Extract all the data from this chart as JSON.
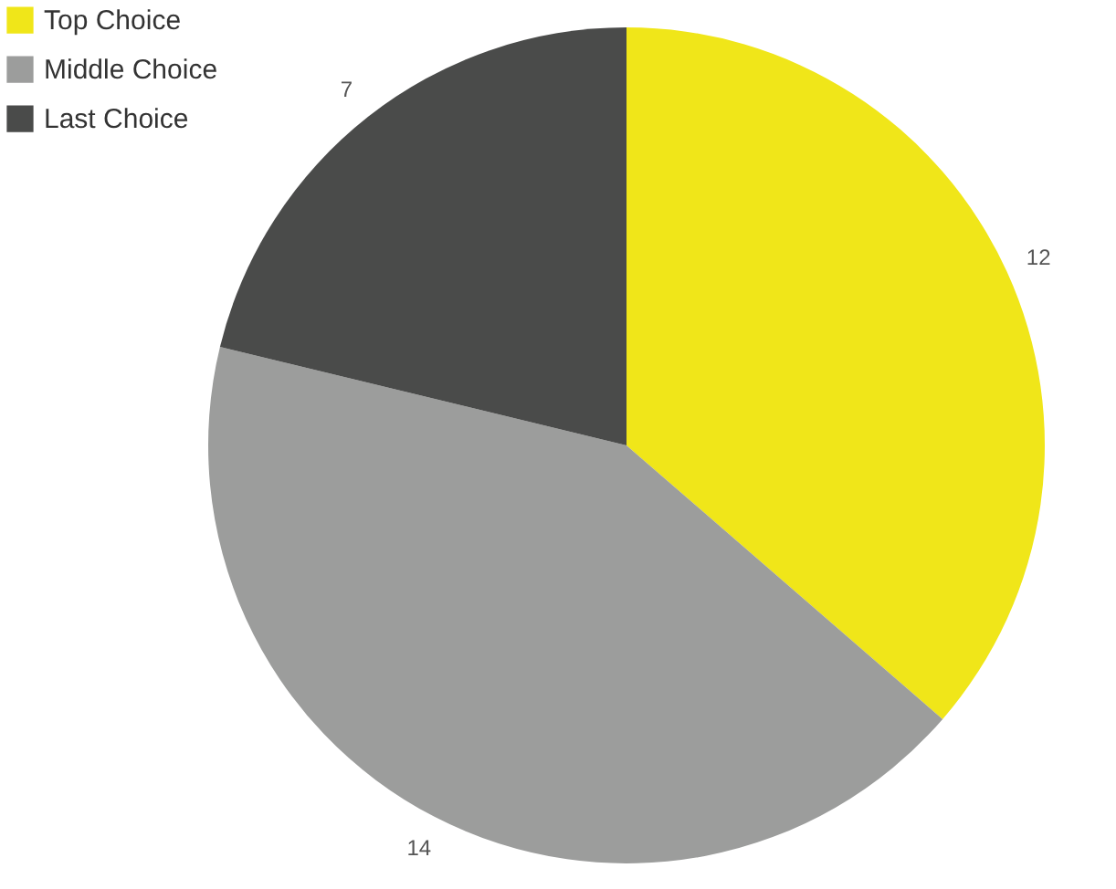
{
  "chart_data": {
    "type": "pie",
    "categories": [
      "Top Choice",
      "Middle Choice",
      "Last Choice"
    ],
    "values": [
      12,
      14,
      7
    ],
    "colors": [
      "#f0e619",
      "#9c9d9c",
      "#4a4b4a"
    ],
    "data_labels": true,
    "legend": "top left"
  }
}
